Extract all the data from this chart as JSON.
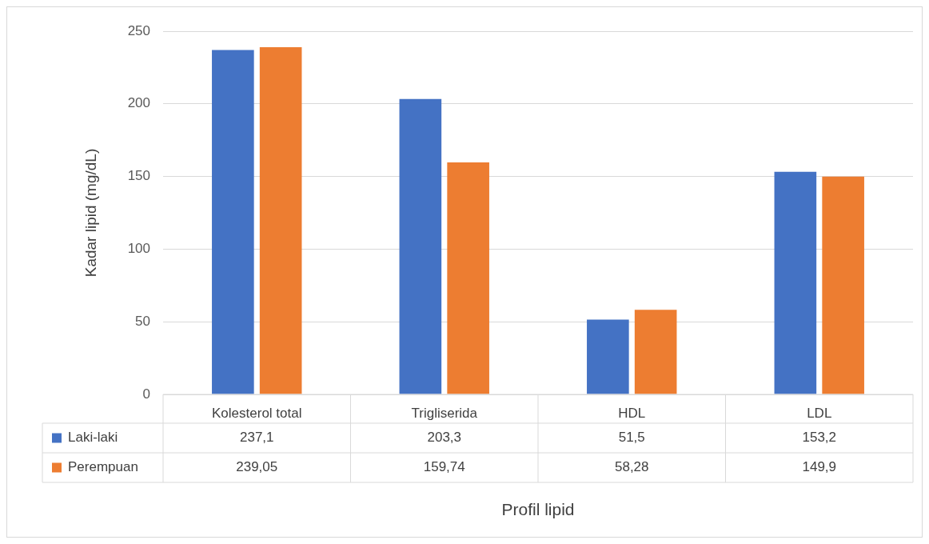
{
  "chart_data": {
    "type": "bar",
    "xlabel": "Profil lipid",
    "ylabel": "Kadar lipid (mg/dL)",
    "categories": [
      "Kolesterol total",
      "Trigliserida",
      "HDL",
      "LDL"
    ],
    "series": [
      {
        "name": "Laki-laki",
        "color": "#4472c4",
        "values": [
          237.1,
          203.3,
          51.5,
          153.2
        ],
        "value_labels": [
          "237,1",
          "203,3",
          "51,5",
          "153,2"
        ]
      },
      {
        "name": "Perempuan",
        "color": "#ed7d31",
        "values": [
          239.05,
          159.74,
          58.28,
          149.9
        ],
        "value_labels": [
          "239,05",
          "159,74",
          "58,28",
          "149,9"
        ]
      }
    ],
    "ylim": [
      0,
      250
    ],
    "yticks": [
      0,
      50,
      100,
      150,
      200,
      250
    ],
    "grid": "y",
    "legend": "bottom"
  }
}
